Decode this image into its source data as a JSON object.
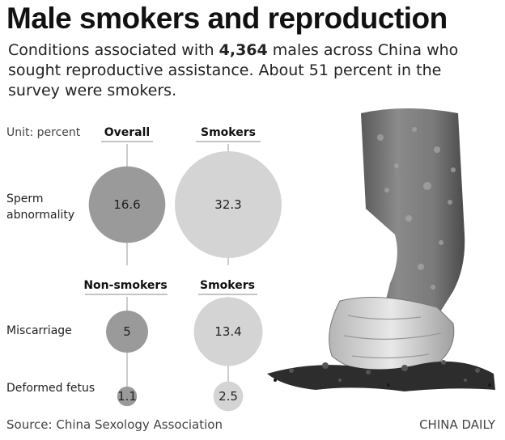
{
  "header": {
    "title": "Male smokers and reproduction",
    "subtitle_pre": "Conditions associated with ",
    "subtitle_bold": "4,364",
    "subtitle_post": " males across China who sought reproductive assistance. About 51 percent in the survey were smokers."
  },
  "footer": {
    "source": "Source: China Sexology Association",
    "credit": "CHINA DAILY"
  },
  "chart_data": {
    "type": "bubble",
    "unit_label": "Unit: percent",
    "panels": [
      {
        "columns": [
          "Overall",
          "Smokers"
        ],
        "rows": [
          {
            "label": "Sperm abnormality",
            "values": [
              16.6,
              32.3
            ]
          }
        ]
      },
      {
        "columns": [
          "Non-smokers",
          "Smokers"
        ],
        "rows": [
          {
            "label": "Miscarriage",
            "values": [
              5,
              13.4
            ]
          },
          {
            "label": "Deformed fetus",
            "values": [
              1.1,
              2.5
            ]
          }
        ]
      }
    ],
    "colors": {
      "left": "#9a9a9a",
      "right": "#d4d4d4",
      "axis": "#9a9a9a"
    }
  }
}
